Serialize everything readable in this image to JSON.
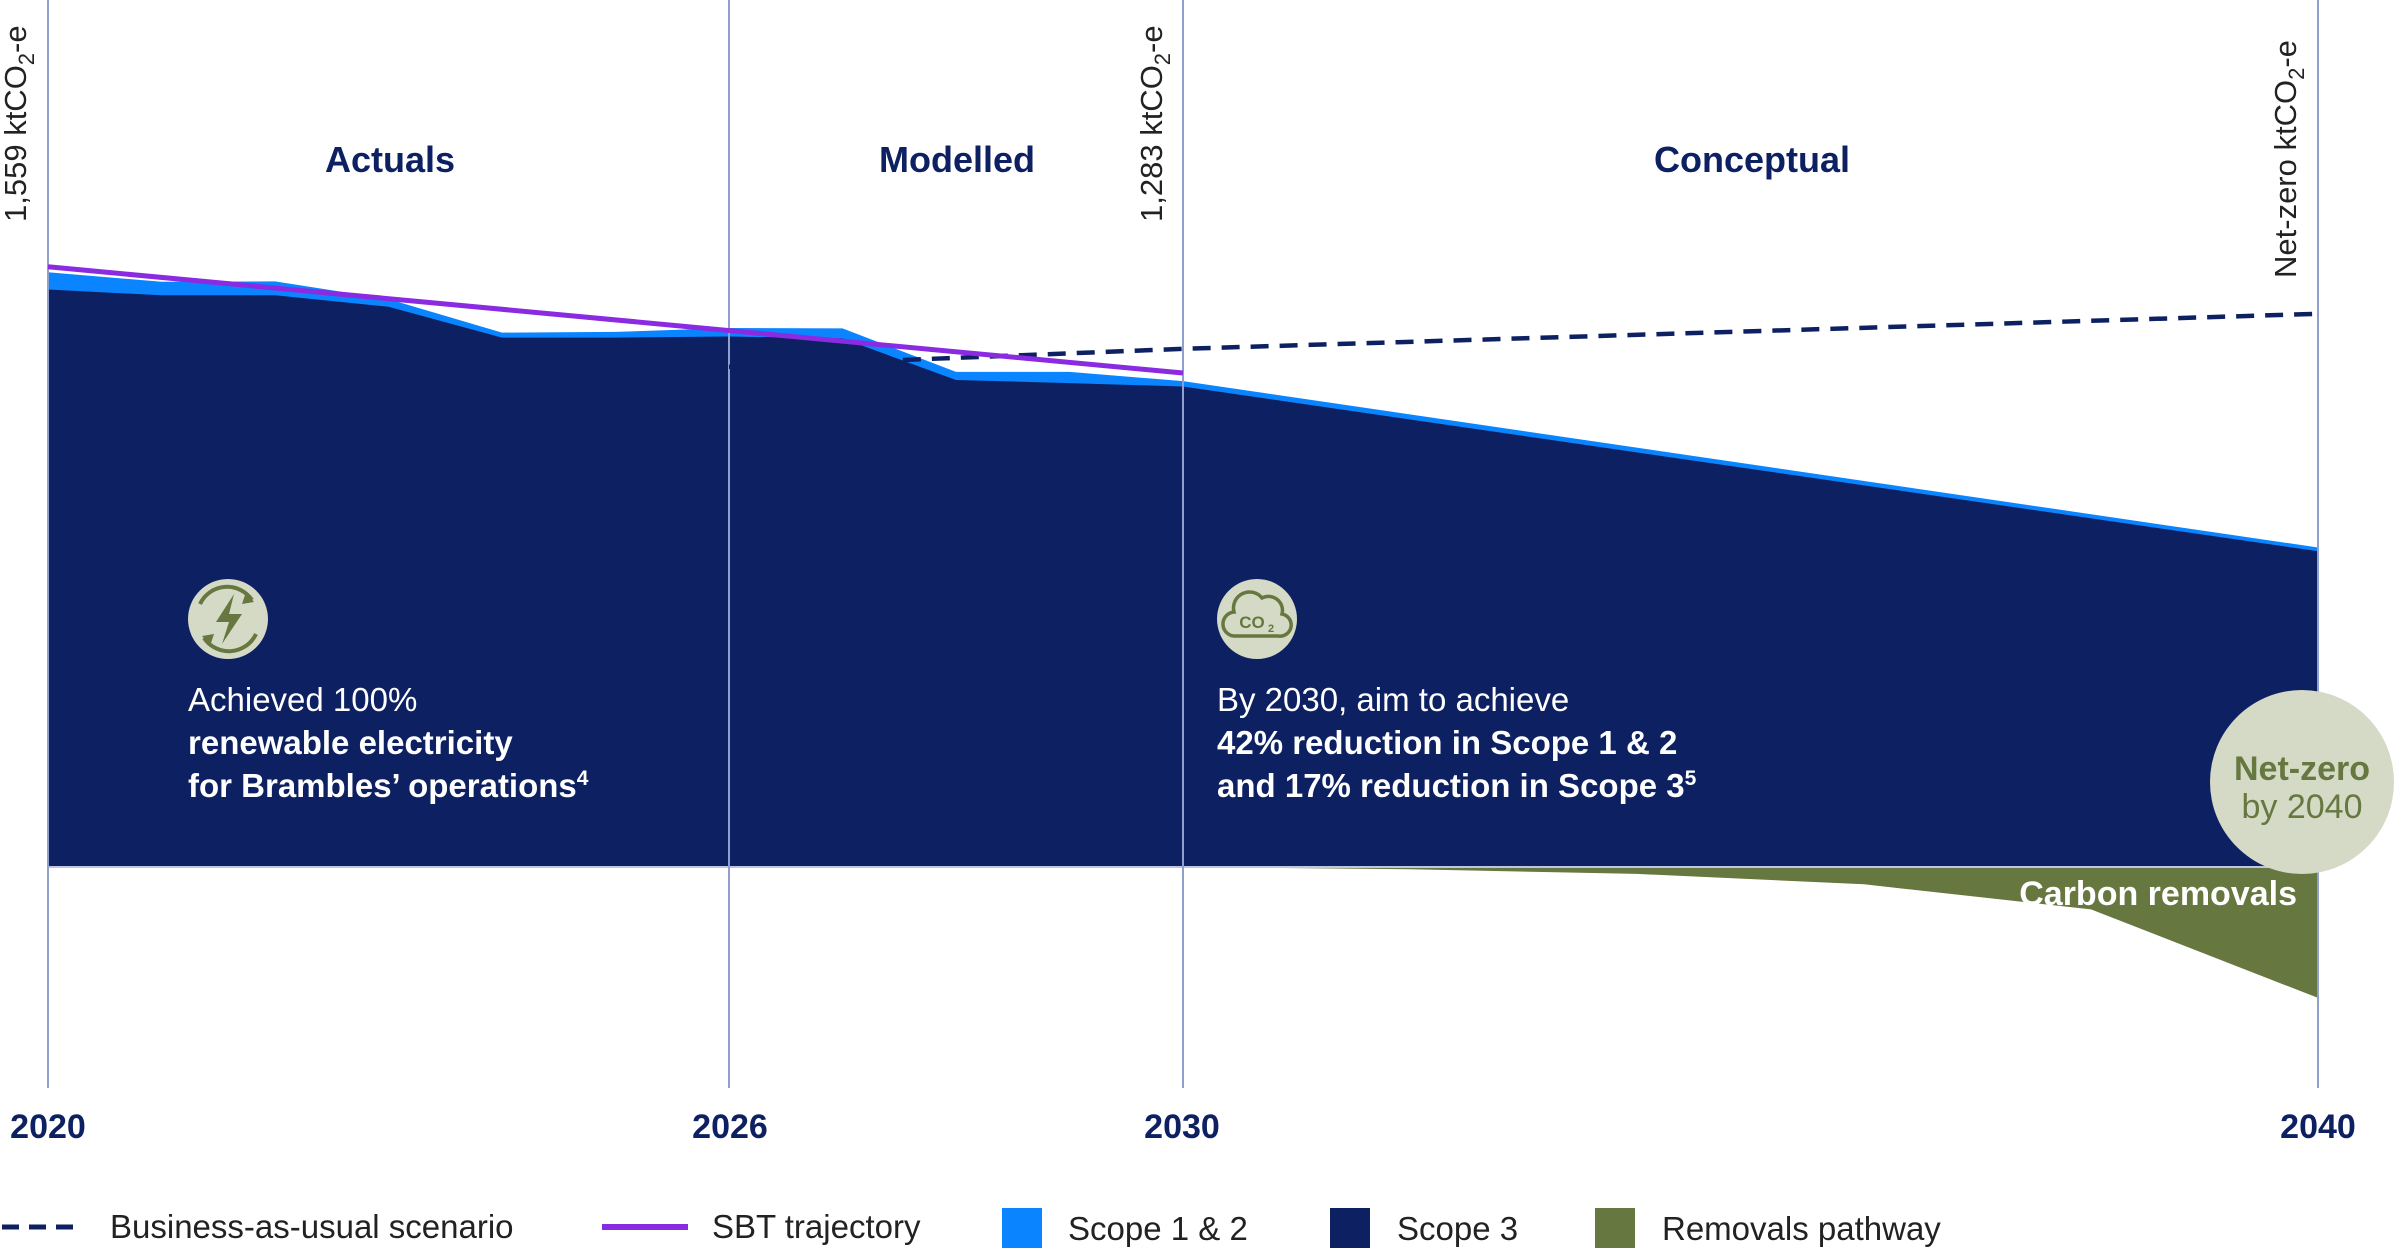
{
  "chart_data": {
    "type": "area",
    "title": "",
    "x_range": [
      2020,
      2040
    ],
    "phases": [
      {
        "label": "Actuals",
        "from": 2020,
        "to": 2026
      },
      {
        "label": "Modelled",
        "from": 2026,
        "to": 2030
      },
      {
        "label": "Conceptual",
        "from": 2030,
        "to": 2040
      }
    ],
    "year_ticks": [
      "2020",
      "2026",
      "2030",
      "2040"
    ],
    "markers": [
      {
        "year": 2020,
        "label": "1,559 ktCO",
        "sub": "2",
        "suffix": "-e"
      },
      {
        "year": 2030,
        "label": "1,283 ktCO",
        "sub": "2",
        "suffix": "-e"
      },
      {
        "year": 2040,
        "label": "Net-zero ktCO",
        "sub": "2",
        "suffix": "-e"
      }
    ],
    "series": [
      {
        "name": "Business-as-usual scenario",
        "kind": "dashed-line",
        "color": "#0d2061",
        "points": [
          [
            2026,
            1299
          ],
          [
            2030,
            1346
          ],
          [
            2040,
            1437
          ]
        ]
      },
      {
        "name": "SBT trajectory",
        "kind": "line",
        "color": "#8a2be2",
        "points": [
          [
            2020,
            1559
          ],
          [
            2030,
            1283
          ]
        ]
      },
      {
        "name": "Scope 1 & 2",
        "kind": "area-band",
        "color": "#0a84ff",
        "total_points": [
          [
            2020,
            1545
          ],
          [
            2021,
            1520
          ],
          [
            2022,
            1521
          ],
          [
            2023,
            1475
          ],
          [
            2024,
            1388
          ],
          [
            2025,
            1390
          ],
          [
            2026,
            1400
          ],
          [
            2027,
            1399
          ],
          [
            2028,
            1286
          ],
          [
            2029,
            1286
          ],
          [
            2030,
            1262
          ],
          [
            2040,
            830
          ]
        ]
      },
      {
        "name": "Scope 3",
        "kind": "area",
        "color": "#0d2061",
        "points": [
          [
            2020,
            1500
          ],
          [
            2021,
            1485
          ],
          [
            2022,
            1485
          ],
          [
            2023,
            1455
          ],
          [
            2024,
            1375
          ],
          [
            2025,
            1375
          ],
          [
            2026,
            1378
          ],
          [
            2027,
            1373
          ],
          [
            2028,
            1265
          ],
          [
            2029,
            1257
          ],
          [
            2030,
            1248
          ],
          [
            2040,
            820
          ]
        ]
      },
      {
        "name": "Removals pathway",
        "kind": "area-below",
        "color": "#66773f",
        "points": [
          [
            2030,
            0
          ],
          [
            2032,
            -6
          ],
          [
            2034,
            -18
          ],
          [
            2036,
            -45
          ],
          [
            2038,
            -110
          ],
          [
            2040,
            -340
          ]
        ]
      }
    ],
    "annotations": {
      "left": {
        "line1": "Achieved 100%",
        "line2": "renewable electricity",
        "line3": "for Brambles’ operations",
        "sup": "4",
        "icon": "lightning-recycle-icon"
      },
      "right": {
        "line1": "By 2030, aim to achieve",
        "line2": "42% reduction in Scope 1 & 2",
        "line3": "and 17% reduction in Scope 3",
        "sup": "5",
        "icon": "co2-cloud-icon"
      },
      "carbon_removals": "Carbon removals",
      "netzero_badge": {
        "line1": "Net-zero",
        "line2": "by 2040"
      }
    },
    "legend": [
      {
        "label": "Business-as-usual scenario",
        "kind": "dashed",
        "color": "#0d2061"
      },
      {
        "label": "SBT trajectory",
        "kind": "line",
        "color": "#8a2be2"
      },
      {
        "label": "Scope 1 & 2",
        "kind": "box",
        "color": "#0a84ff"
      },
      {
        "label": "Scope 3",
        "kind": "box",
        "color": "#0d2061"
      },
      {
        "label": "Removals pathway",
        "kind": "box",
        "color": "#66773f"
      }
    ],
    "colors": {
      "divider": "#8fa0cf",
      "icon_bg": "#d4dac6",
      "icon_fg": "#66773f"
    }
  }
}
